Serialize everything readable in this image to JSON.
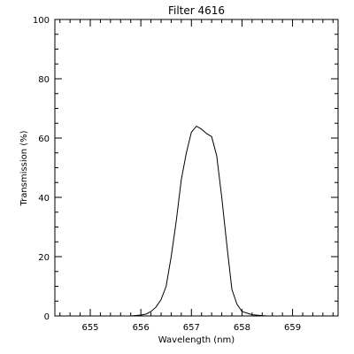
{
  "chart_data": {
    "type": "line",
    "title": "Filter 4616",
    "xlabel": "Wavelength (nm)",
    "ylabel": "Transmission (%)",
    "xlim": [
      654.3,
      659.9
    ],
    "ylim": [
      0,
      100
    ],
    "x_ticks": [
      "655",
      "656",
      "657",
      "658",
      "659"
    ],
    "y_ticks": [
      "0",
      "20",
      "40",
      "60",
      "80",
      "100"
    ],
    "grid": false,
    "series": [
      {
        "x": [
          655.8,
          656.0,
          656.1,
          656.2,
          656.3,
          656.4,
          656.5,
          656.6,
          656.7,
          656.8,
          656.9,
          657.0,
          657.1,
          657.2,
          657.3,
          657.4,
          657.5,
          657.6,
          657.7,
          657.8,
          657.9,
          658.0,
          658.2,
          658.4,
          658.5
        ],
        "y": [
          0,
          0.3,
          0.6,
          1.5,
          3,
          5.5,
          10,
          20,
          32,
          46,
          55,
          62,
          64,
          63,
          61.5,
          60.5,
          54,
          40,
          24,
          9,
          4,
          1.5,
          0.4,
          0.1,
          0
        ]
      }
    ]
  }
}
